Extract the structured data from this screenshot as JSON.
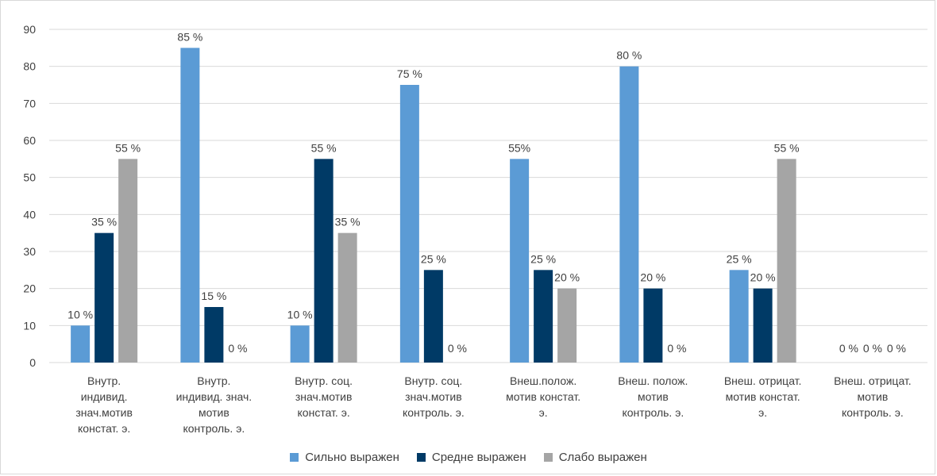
{
  "chart_data": {
    "type": "bar",
    "title": "",
    "xlabel": "",
    "ylabel": "",
    "ylim": [
      0,
      90
    ],
    "ytick_step": 10,
    "grid": true,
    "legend_position": "bottom",
    "categories": [
      [
        "Внутр.",
        "индивид.",
        "знач.мотив",
        "констат. э."
      ],
      [
        "Внутр.",
        "индивид. знач.",
        "мотив",
        "контроль. э."
      ],
      [
        "Внутр. соц.",
        "знач.мотив",
        "констат. э."
      ],
      [
        "Внутр. соц.",
        "знач.мотив",
        "контроль. э."
      ],
      [
        "Внеш.полож.",
        "мотив  констат.",
        "э."
      ],
      [
        "Внеш. полож.",
        "мотив",
        "контроль. э."
      ],
      [
        "Внеш. отрицат.",
        "мотив констат.",
        "э."
      ],
      [
        "Внеш. отрицат.",
        "мотив",
        "контроль. э."
      ]
    ],
    "series": [
      {
        "name": "Сильно выражен",
        "color": "#5B9BD5",
        "values": [
          10,
          85,
          10,
          75,
          55,
          80,
          25,
          0
        ],
        "labels": [
          "10 %",
          "85 %",
          "10 %",
          "75 %",
          "55%",
          "80 %",
          "25 %",
          "0 %"
        ]
      },
      {
        "name": "Средне выражен",
        "color": "#003A66",
        "values": [
          35,
          15,
          55,
          25,
          25,
          20,
          20,
          0
        ],
        "labels": [
          "35 %",
          "15 %",
          "55 %",
          "25 %",
          "25 %",
          "20 %",
          "20 %",
          "0 %"
        ]
      },
      {
        "name": "Слабо выражен",
        "color": "#A5A5A5",
        "values": [
          55,
          0,
          35,
          0,
          20,
          0,
          55,
          0
        ],
        "labels": [
          "55 %",
          "0 %",
          "35 %",
          "0 %",
          "20 %",
          "0 %",
          "55 %",
          "0 %"
        ]
      }
    ]
  }
}
